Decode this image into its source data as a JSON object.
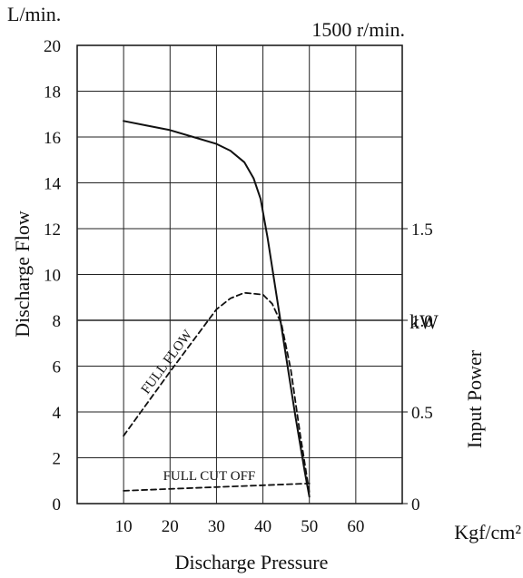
{
  "chart_data": {
    "type": "line",
    "title": "",
    "annotation": "1500 r/min.",
    "xlabel": "Discharge Pressure",
    "xunit": "Kgf/cm²",
    "xlim": [
      0,
      70
    ],
    "xticks": [
      10,
      20,
      30,
      40,
      50,
      60
    ],
    "ylabel": "Discharge Flow",
    "yunit": "L/min.",
    "ylim": [
      0,
      20
    ],
    "yticks": [
      0,
      2,
      4,
      6,
      8,
      10,
      12,
      14,
      16,
      18,
      20
    ],
    "y2label": "Input Power",
    "y2unit": "kW",
    "y2lim": [
      0,
      2.5
    ],
    "y2ticks": [
      0,
      0.5,
      1.0,
      1.5
    ],
    "y2ticklabels": [
      "0",
      "0.5",
      "1.0",
      "1.5"
    ],
    "grid": true,
    "series": [
      {
        "axis": "y",
        "style": "solid",
        "x": [
          10,
          15,
          20,
          25,
          30,
          33,
          36,
          38,
          39.5,
          41,
          43,
          45,
          47,
          49,
          50
        ],
        "y": [
          16.7,
          16.5,
          16.3,
          16.0,
          15.7,
          15.4,
          14.9,
          14.2,
          13.3,
          11.6,
          9.0,
          6.4,
          3.8,
          1.4,
          0.3
        ]
      },
      {
        "axis": "y2",
        "style": "dashed",
        "label": "FULL FLOW",
        "x": [
          10,
          20,
          30,
          33,
          36,
          40,
          42,
          44,
          46,
          48,
          50
        ],
        "y": [
          0.37,
          0.72,
          1.06,
          1.12,
          1.15,
          1.14,
          1.09,
          0.98,
          0.73,
          0.38,
          0.06
        ]
      },
      {
        "axis": "y2",
        "style": "dashed",
        "label": "FULL CUT OFF",
        "x": [
          10,
          20,
          30,
          40,
          50
        ],
        "y": [
          0.07,
          0.08,
          0.09,
          0.1,
          0.11
        ]
      }
    ]
  }
}
